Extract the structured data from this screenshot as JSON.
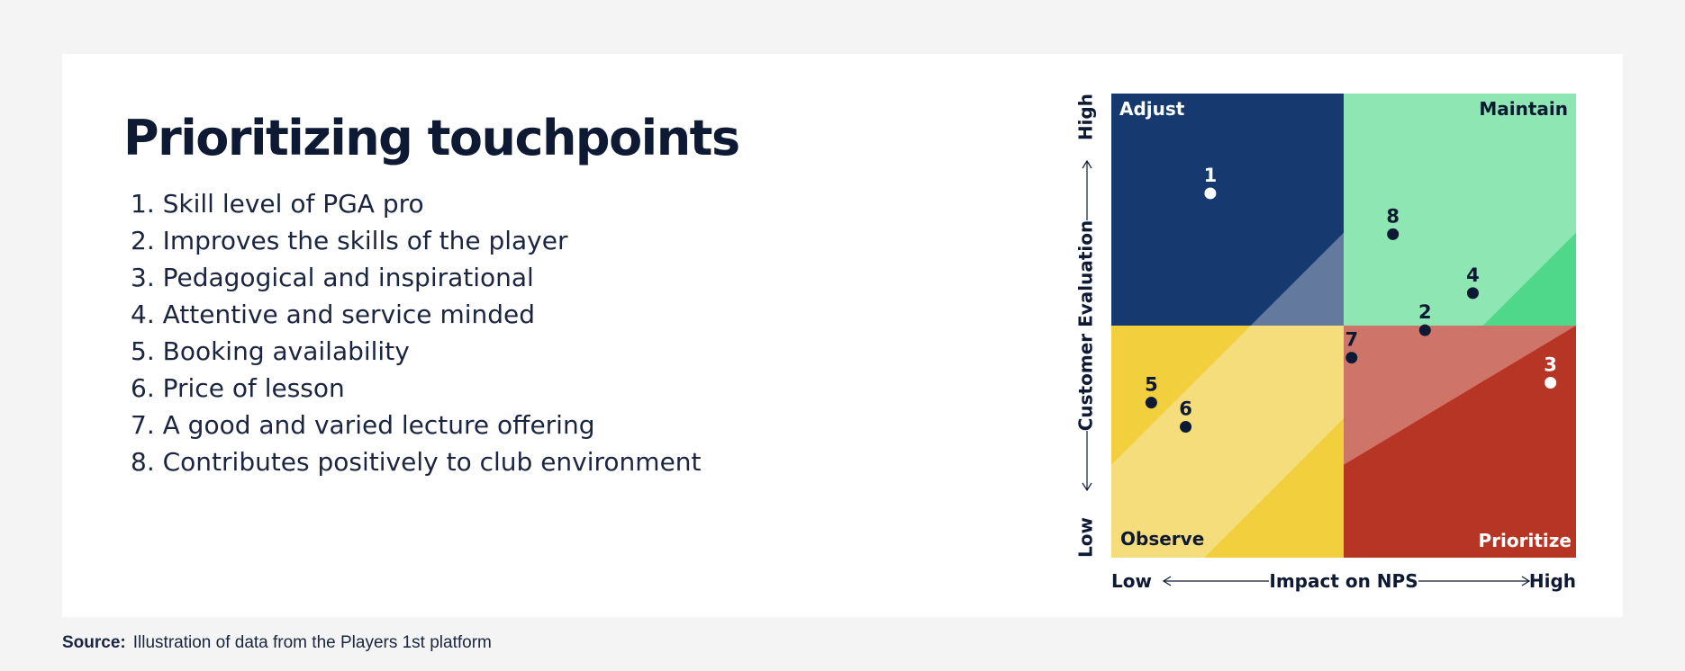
{
  "title": "Prioritizing touchpoints",
  "touchpoints": [
    "Skill level of PGA pro",
    "Improves the skills of the player",
    "Pedagogical and inspirational",
    "Attentive and service minded",
    "Booking availability",
    "Price of lesson",
    "A good and varied lecture offering",
    "Contributes positively to club environment"
  ],
  "source": {
    "label": "Source:",
    "text": "Illustration of data from the Players 1st platform"
  },
  "colors": {
    "adjust": "#163a70",
    "maintain": "#8ee6b3",
    "maintain_accent": "#4fd78a",
    "observe": "#f6dd7b",
    "observe_accent": "#f2cf3d",
    "prioritize": "#b73524",
    "prioritize_accent": "#cf7468",
    "adjust_accent": "#637a9e",
    "ink": "#0e1a33"
  },
  "chart_data": {
    "type": "scatter",
    "xlabel": "Impact on NPS",
    "ylabel": "Customer Evaluation",
    "x_low_label": "Low",
    "x_high_label": "High",
    "y_low_label": "Low",
    "y_high_label": "High",
    "xlim": [
      0,
      1
    ],
    "ylim": [
      0,
      1
    ],
    "grid": false,
    "quadrants": {
      "adjust": "Adjust",
      "maintain": "Maintain",
      "observe": "Observe",
      "prioritize": "Prioritize"
    },
    "points": [
      {
        "label": "1",
        "x": 0.213,
        "y": 0.785,
        "color": "#ffffff"
      },
      {
        "label": "2",
        "x": 0.675,
        "y": 0.49,
        "color": "#0e1a33"
      },
      {
        "label": "3",
        "x": 0.945,
        "y": 0.377,
        "color": "#ffffff"
      },
      {
        "label": "4",
        "x": 0.778,
        "y": 0.57,
        "color": "#0e1a33"
      },
      {
        "label": "5",
        "x": 0.086,
        "y": 0.334,
        "color": "#0e1a33"
      },
      {
        "label": "6",
        "x": 0.16,
        "y": 0.282,
        "color": "#0e1a33"
      },
      {
        "label": "7",
        "x": 0.517,
        "y": 0.431,
        "color": "#0e1a33"
      },
      {
        "label": "8",
        "x": 0.606,
        "y": 0.697,
        "color": "#0e1a33"
      }
    ]
  }
}
